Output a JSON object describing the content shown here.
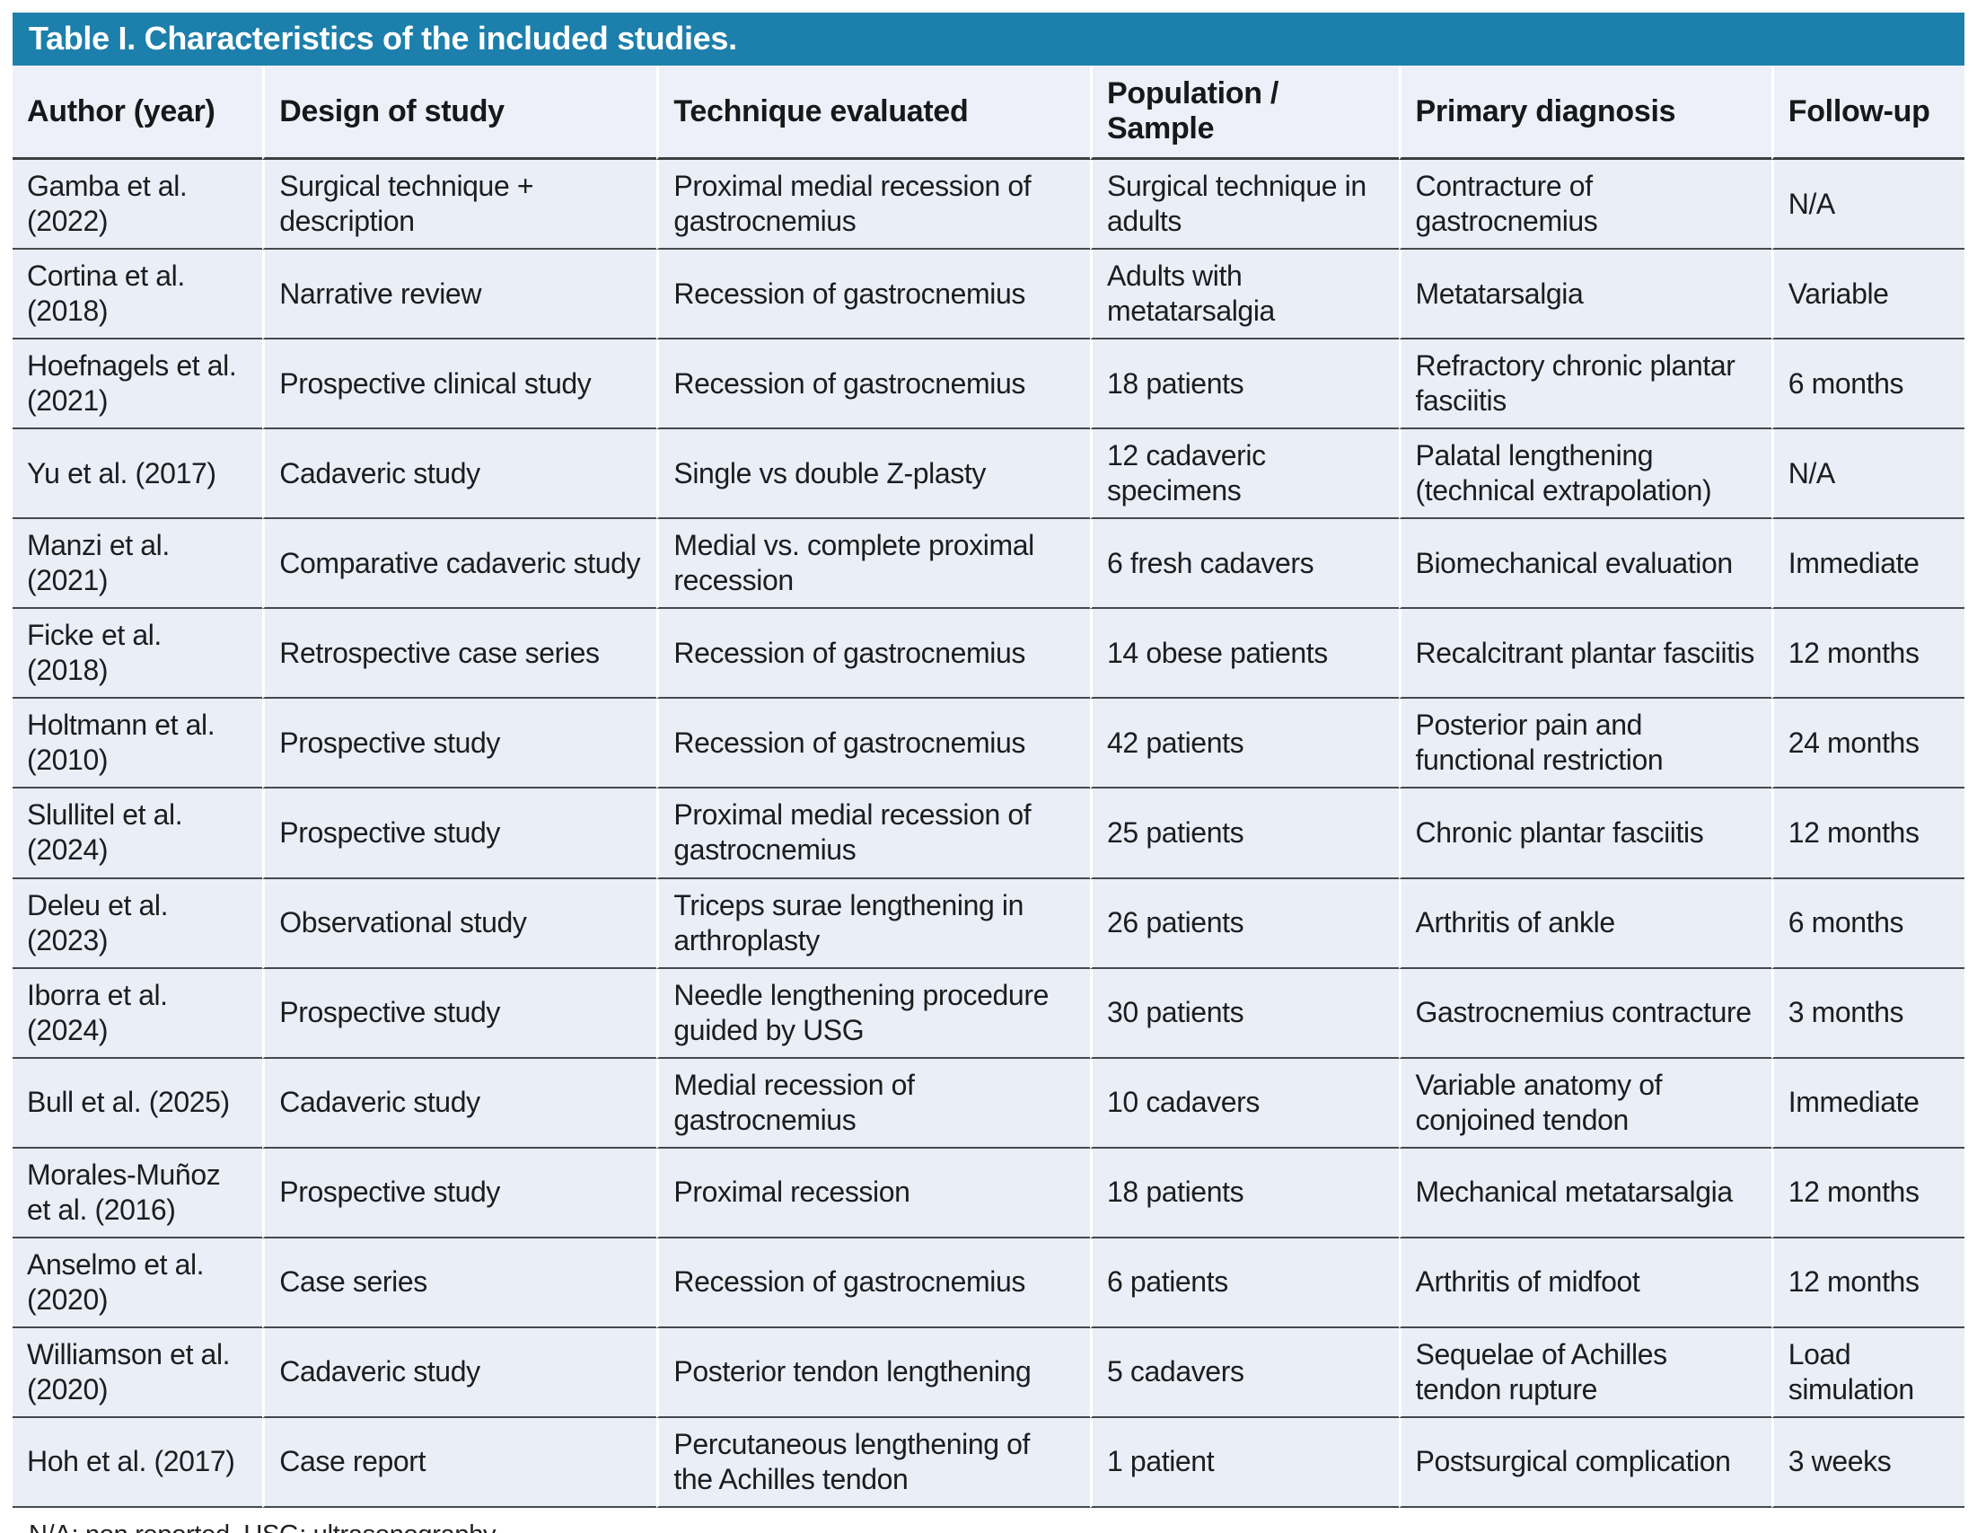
{
  "table": {
    "title": "Table I. Characteristics of the included studies.",
    "columns": [
      "Author (year)",
      "Design of study",
      "Technique evaluated",
      "Population / Sample",
      "Primary diagnosis",
      "Follow-up"
    ],
    "rows": [
      [
        "Gamba et al. (2022)",
        "Surgical technique + description",
        "Proximal medial recession of gastrocnemius",
        "Surgical technique in adults",
        "Contracture of gastrocnemius",
        "N/A"
      ],
      [
        "Cortina et al. (2018)",
        "Narrative review",
        "Recession of gastrocnemius",
        "Adults with metatarsalgia",
        "Metatarsalgia",
        "Variable"
      ],
      [
        "Hoefnagels et al. (2021)",
        "Prospective clinical study",
        "Recession of gastrocnemius",
        "18 patients",
        "Refractory chronic plantar fasciitis",
        "6 months"
      ],
      [
        "Yu et al. (2017)",
        "Cadaveric study",
        "Single vs double Z-plasty",
        "12 cadaveric specimens",
        "Palatal lengthening (technical extrapolation)",
        "N/A"
      ],
      [
        "Manzi et al. (2021)",
        "Comparative cadaveric study",
        "Medial vs. complete proximal recession",
        "6 fresh cadavers",
        "Biomechanical evaluation",
        "Immediate"
      ],
      [
        "Ficke et al. (2018)",
        "Retrospective case series",
        "Recession of gastrocnemius",
        "14 obese patients",
        "Recalcitrant plantar fasciitis",
        "12 months"
      ],
      [
        "Holtmann et al. (2010)",
        "Prospective study",
        "Recession of gastrocnemius",
        "42 patients",
        "Posterior pain and functional restriction",
        "24 months"
      ],
      [
        "Slullitel et al. (2024)",
        "Prospective study",
        "Proximal medial recession of gastrocnemius",
        "25 patients",
        "Chronic plantar fasciitis",
        "12 months"
      ],
      [
        "Deleu et al. (2023)",
        "Observational study",
        "Triceps surae lengthening in arthroplasty",
        "26 patients",
        "Arthritis of ankle",
        "6 months"
      ],
      [
        "Iborra et al. (2024)",
        "Prospective study",
        "Needle lengthening procedure guided by USG",
        "30 patients",
        "Gastrocnemius contracture",
        "3 months"
      ],
      [
        "Bull et al. (2025)",
        "Cadaveric study",
        "Medial recession of gastrocnemius",
        "10 cadavers",
        "Variable anatomy of conjoined tendon",
        "Immediate"
      ],
      [
        "Morales-Muñoz et al. (2016)",
        "Prospective study",
        "Proximal recession",
        "18 patients",
        "Mechanical metatarsalgia",
        "12 months"
      ],
      [
        "Anselmo et al. (2020)",
        "Case series",
        "Recession of gastrocnemius",
        "6 patients",
        "Arthritis of midfoot",
        "12 months"
      ],
      [
        "Williamson et al. (2020)",
        "Cadaveric study",
        "Posterior tendon lengthening",
        "5 cadavers",
        "Sequelae of Achilles tendon rupture",
        "Load simulation"
      ],
      [
        "Hoh et al. (2017)",
        "Case report",
        "Percutaneous lengthening of the Achilles tendon",
        "1 patient",
        "Postsurgical complication",
        "3 weeks"
      ]
    ],
    "footnote": "N/A: non reported. USG: ultrasonography."
  },
  "colors": {
    "title_bar_background": "#1d7fab",
    "title_text": "#ffffff",
    "row_background": "#eaeef7",
    "header_row_background": "#edf0f8",
    "rule_color": "#46484c",
    "body_text": "#1c1d1f"
  }
}
